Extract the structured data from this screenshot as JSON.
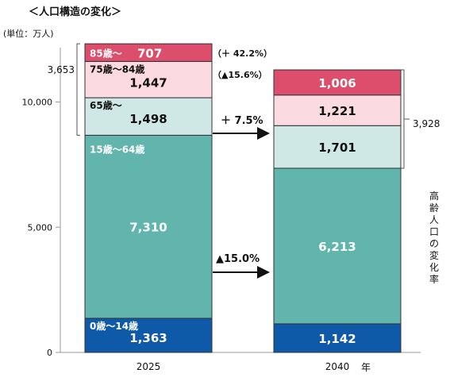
{
  "page": {
    "title": "＜人口構造の変化＞",
    "unit": "(単位：万人)",
    "year_suffix": "年",
    "side_label": "高齢人口の変化率"
  },
  "chart_data": {
    "type": "bar",
    "stacked": true,
    "categories": [
      "2025",
      "2040"
    ],
    "ylim": [
      0,
      11000
    ],
    "yticks": [
      0,
      5000,
      10000
    ],
    "ytick_labels": [
      "0",
      "5,000",
      "10,000"
    ],
    "series": [
      {
        "name": "0歳～14歳",
        "values": [
          1363,
          1142
        ],
        "color": "#0f5aa8",
        "label_color": "#ffffff"
      },
      {
        "name": "15歳～64歳",
        "values": [
          7310,
          6213
        ],
        "color": "#62b5ad",
        "label_color": "#ffffff"
      },
      {
        "name": "65歳～",
        "values": [
          1498,
          1701
        ],
        "color": "#cfe8e6",
        "label_color": "#111111"
      },
      {
        "name": "75歳～84歳",
        "values": [
          1447,
          1221
        ],
        "color": "#fbdbe1",
        "label_color": "#111111"
      },
      {
        "name": "85歳～",
        "values": [
          707,
          1006
        ],
        "color": "#dd4d6c",
        "label_color": "#ffffff"
      }
    ],
    "value_labels": [
      [
        "1,363",
        "1,142"
      ],
      [
        "7,310",
        "6,213"
      ],
      [
        "1,498",
        "1,701"
      ],
      [
        "1,447",
        "1,221"
      ],
      [
        "707",
        "1,006"
      ]
    ],
    "elderly_totals": [
      "3,653",
      "3,928"
    ],
    "annotations": {
      "age_85": "（＋ 42.2%）",
      "age_75_84": "（▲15.6%）",
      "age_65_74": "＋ 7.5%",
      "age_15_64": "▲15.0%"
    }
  }
}
